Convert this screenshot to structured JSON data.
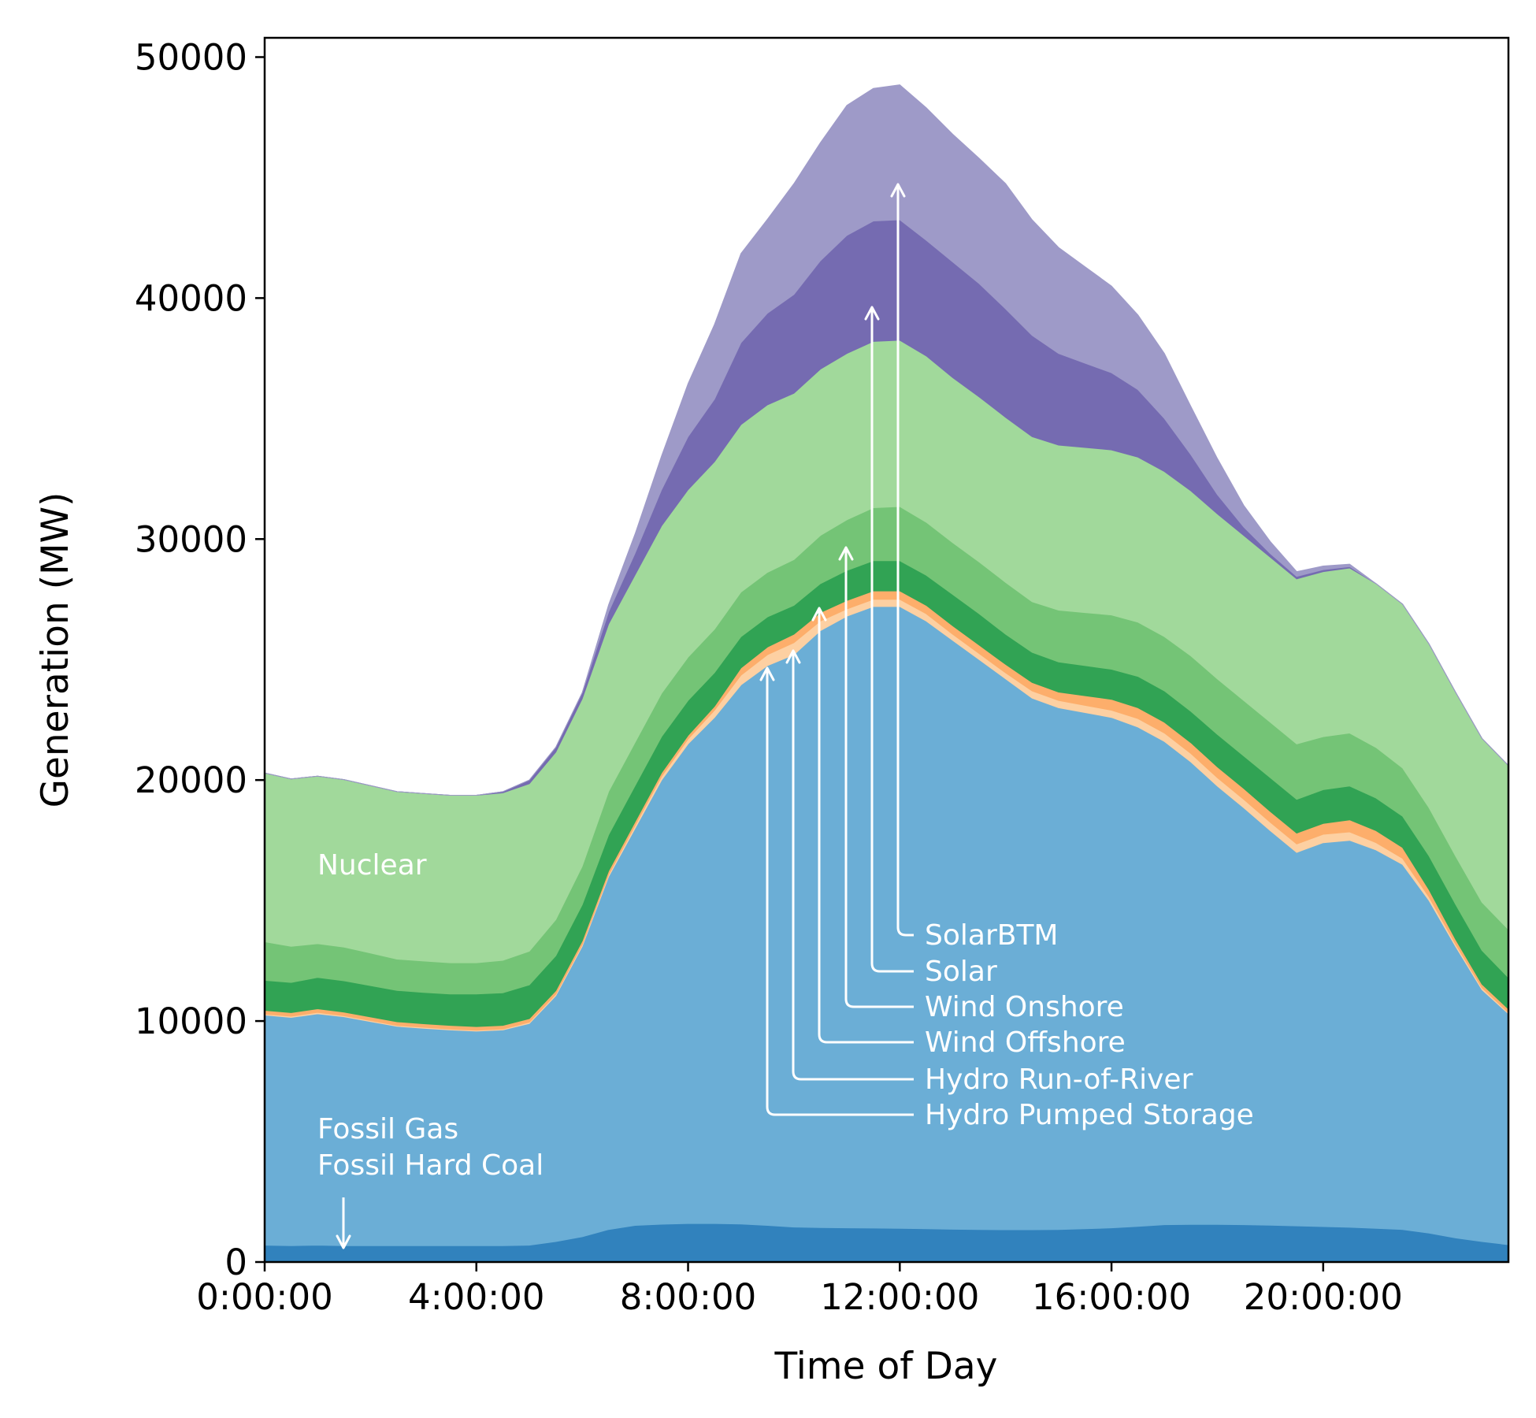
{
  "chart_data": {
    "type": "area",
    "stacked": true,
    "xlabel": "Time of Day",
    "ylabel": "Generation (MW)",
    "xlim": [
      0,
      23.5
    ],
    "ylim": [
      0,
      50800
    ],
    "x_ticks": [
      0,
      4,
      8,
      12,
      16,
      20
    ],
    "x_tick_labels": [
      "0:00:00",
      "4:00:00",
      "8:00:00",
      "12:00:00",
      "16:00:00",
      "20:00:00"
    ],
    "y_ticks": [
      0,
      10000,
      20000,
      30000,
      40000,
      50000
    ],
    "y_tick_labels": [
      "0",
      "10000",
      "20000",
      "30000",
      "40000",
      "50000"
    ],
    "grid": false,
    "legend": "none (inline annotations)",
    "x": [
      0,
      0.5,
      1,
      1.5,
      2,
      2.5,
      3,
      3.5,
      4,
      4.5,
      5,
      5.5,
      6,
      6.5,
      7,
      7.5,
      8,
      8.5,
      9,
      9.5,
      10,
      10.5,
      11,
      11.5,
      12,
      12.5,
      13,
      13.5,
      14,
      14.5,
      15,
      15.5,
      16,
      16.5,
      17,
      17.5,
      18,
      18.5,
      19,
      19.5,
      20,
      20.5,
      21,
      21.5,
      22,
      22.5,
      23,
      23.5
    ],
    "series": [
      {
        "name": "Fossil Hard Coal",
        "color": "#3182bd",
        "values": [
          700,
          680,
          700,
          680,
          680,
          680,
          680,
          680,
          680,
          680,
          700,
          850,
          1050,
          1350,
          1520,
          1570,
          1600,
          1600,
          1580,
          1520,
          1450,
          1430,
          1420,
          1410,
          1400,
          1380,
          1360,
          1350,
          1340,
          1340,
          1350,
          1380,
          1420,
          1480,
          1550,
          1560,
          1560,
          1550,
          1530,
          1500,
          1470,
          1440,
          1400,
          1350,
          1200,
          1000,
          850,
          720
        ]
      },
      {
        "name": "Fossil Gas",
        "color": "#6baed6",
        "values": [
          9550,
          9470,
          9600,
          9500,
          9300,
          9100,
          9020,
          8950,
          8900,
          8950,
          9200,
          10200,
          12050,
          14650,
          16480,
          18430,
          19900,
          21000,
          22370,
          23230,
          23750,
          24770,
          25380,
          25790,
          25800,
          25220,
          24440,
          23650,
          22860,
          22060,
          21650,
          21420,
          21180,
          20720,
          20050,
          19190,
          18190,
          17300,
          16370,
          15500,
          15930,
          16060,
          15700,
          15150,
          13800,
          12100,
          10450,
          9580
        ]
      },
      {
        "name": "Hydro Pumped Storage",
        "color": "#fdd0a2",
        "values": [
          40,
          50,
          60,
          40,
          40,
          40,
          40,
          40,
          40,
          40,
          50,
          60,
          70,
          80,
          120,
          150,
          200,
          300,
          400,
          450,
          500,
          400,
          300,
          300,
          300,
          300,
          250,
          250,
          250,
          300,
          300,
          300,
          300,
          350,
          350,
          350,
          350,
          350,
          350,
          350,
          350,
          350,
          300,
          250,
          150,
          100,
          80,
          50
        ]
      },
      {
        "name": "Hydro Run-of-River",
        "color": "#fdae6b",
        "values": [
          150,
          150,
          150,
          150,
          150,
          150,
          150,
          150,
          150,
          150,
          150,
          150,
          150,
          150,
          150,
          150,
          150,
          160,
          300,
          320,
          350,
          350,
          350,
          350,
          350,
          350,
          350,
          350,
          350,
          350,
          350,
          400,
          450,
          450,
          450,
          450,
          450,
          450,
          450,
          450,
          450,
          500,
          500,
          450,
          300,
          200,
          150,
          150
        ]
      },
      {
        "name": "Wind Offshore",
        "color": "#31a354",
        "values": [
          1250,
          1250,
          1300,
          1300,
          1300,
          1300,
          1300,
          1300,
          1350,
          1350,
          1400,
          1450,
          1500,
          1500,
          1500,
          1500,
          1450,
          1400,
          1300,
          1250,
          1200,
          1200,
          1250,
          1250,
          1250,
          1250,
          1300,
          1300,
          1250,
          1250,
          1250,
          1250,
          1250,
          1300,
          1300,
          1300,
          1350,
          1350,
          1400,
          1400,
          1400,
          1400,
          1350,
          1300,
          1400,
          1450,
          1400,
          1300
        ]
      },
      {
        "name": "Wind Onshore",
        "color": "#74c476",
        "values": [
          1600,
          1500,
          1400,
          1400,
          1350,
          1300,
          1300,
          1300,
          1300,
          1350,
          1400,
          1500,
          1600,
          1800,
          1800,
          1800,
          1800,
          1800,
          1850,
          1850,
          1900,
          2000,
          2100,
          2200,
          2250,
          2200,
          2150,
          2150,
          2150,
          2100,
          2150,
          2200,
          2250,
          2250,
          2250,
          2300,
          2300,
          2300,
          2300,
          2300,
          2200,
          2200,
          2100,
          2000,
          2000,
          2000,
          2000,
          2000
        ]
      },
      {
        "name": "Nuclear",
        "color": "#a1d99b",
        "values": [
          7000,
          6950,
          6950,
          6950,
          6950,
          6950,
          6950,
          6950,
          6950,
          6950,
          6950,
          6950,
          6950,
          6950,
          6950,
          6950,
          6950,
          6950,
          6950,
          6950,
          6900,
          6900,
          6900,
          6900,
          6900,
          6900,
          6850,
          6850,
          6850,
          6850,
          6850,
          6850,
          6850,
          6850,
          6850,
          6850,
          6850,
          6850,
          6850,
          6850,
          6850,
          6850,
          6800,
          6800,
          6800,
          6800,
          6800,
          6800
        ]
      },
      {
        "name": "Solar",
        "color": "#756bb1",
        "values": [
          0,
          0,
          0,
          0,
          0,
          0,
          0,
          0,
          0,
          50,
          150,
          200,
          250,
          500,
          900,
          1500,
          2200,
          2600,
          3400,
          3800,
          4100,
          4500,
          4900,
          5000,
          5000,
          4800,
          4800,
          4700,
          4500,
          4200,
          3800,
          3500,
          3200,
          2800,
          2200,
          1500,
          800,
          350,
          150,
          100,
          80,
          60,
          0,
          0,
          0,
          0,
          0,
          0
        ]
      },
      {
        "name": "SolarBTM",
        "color": "#9e9ac8",
        "values": [
          0,
          0,
          0,
          0,
          0,
          0,
          0,
          0,
          0,
          0,
          0,
          0,
          0,
          300,
          800,
          1400,
          2200,
          3100,
          3700,
          3900,
          4600,
          4900,
          5400,
          5500,
          5600,
          5500,
          5300,
          5200,
          5200,
          4800,
          4400,
          4000,
          3600,
          3100,
          2700,
          2000,
          1500,
          900,
          500,
          200,
          150,
          100,
          0,
          0,
          0,
          0,
          0,
          0
        ]
      }
    ],
    "annotations": [
      {
        "text": "Nuclear"
      },
      {
        "text": "Fossil Gas"
      },
      {
        "text": "Fossil Hard Coal"
      },
      {
        "text": "SolarBTM"
      },
      {
        "text": "Solar"
      },
      {
        "text": "Wind Onshore"
      },
      {
        "text": "Wind Offshore"
      },
      {
        "text": "Hydro Run-of-River"
      },
      {
        "text": "Hydro Pumped Storage"
      }
    ]
  }
}
